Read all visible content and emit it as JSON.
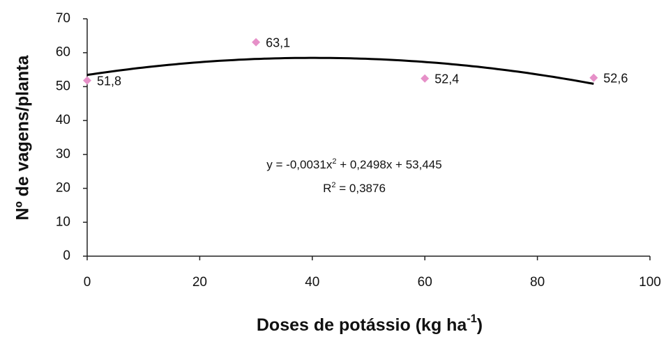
{
  "chart_data": {
    "type": "scatter",
    "x_label": [
      "Doses de potássio (kg ha",
      "-1",
      ")"
    ],
    "y_label": "Nº de vagens/planta",
    "x": [
      0,
      30,
      60,
      90
    ],
    "values": [
      51.8,
      63.1,
      52.4,
      52.6
    ],
    "value_labels": [
      "51,8",
      "63,1",
      "52,4",
      "52,6"
    ],
    "color": "#e690c8",
    "trendline": {
      "coefficients": [
        -0.0031,
        0.2498,
        53.445
      ],
      "color": "#000000",
      "equation": [
        "y = -0,0031x",
        "2",
        " + 0,2498x + 53,445"
      ],
      "r_squared": [
        "R",
        "2",
        " = 0,3876"
      ]
    },
    "xlim": [
      0,
      100
    ],
    "xticks": [
      0,
      20,
      40,
      60,
      80,
      100
    ],
    "ylim": [
      0,
      70
    ],
    "yticks": [
      0,
      10,
      20,
      30,
      40,
      50,
      60,
      70
    ],
    "grid": false
  }
}
